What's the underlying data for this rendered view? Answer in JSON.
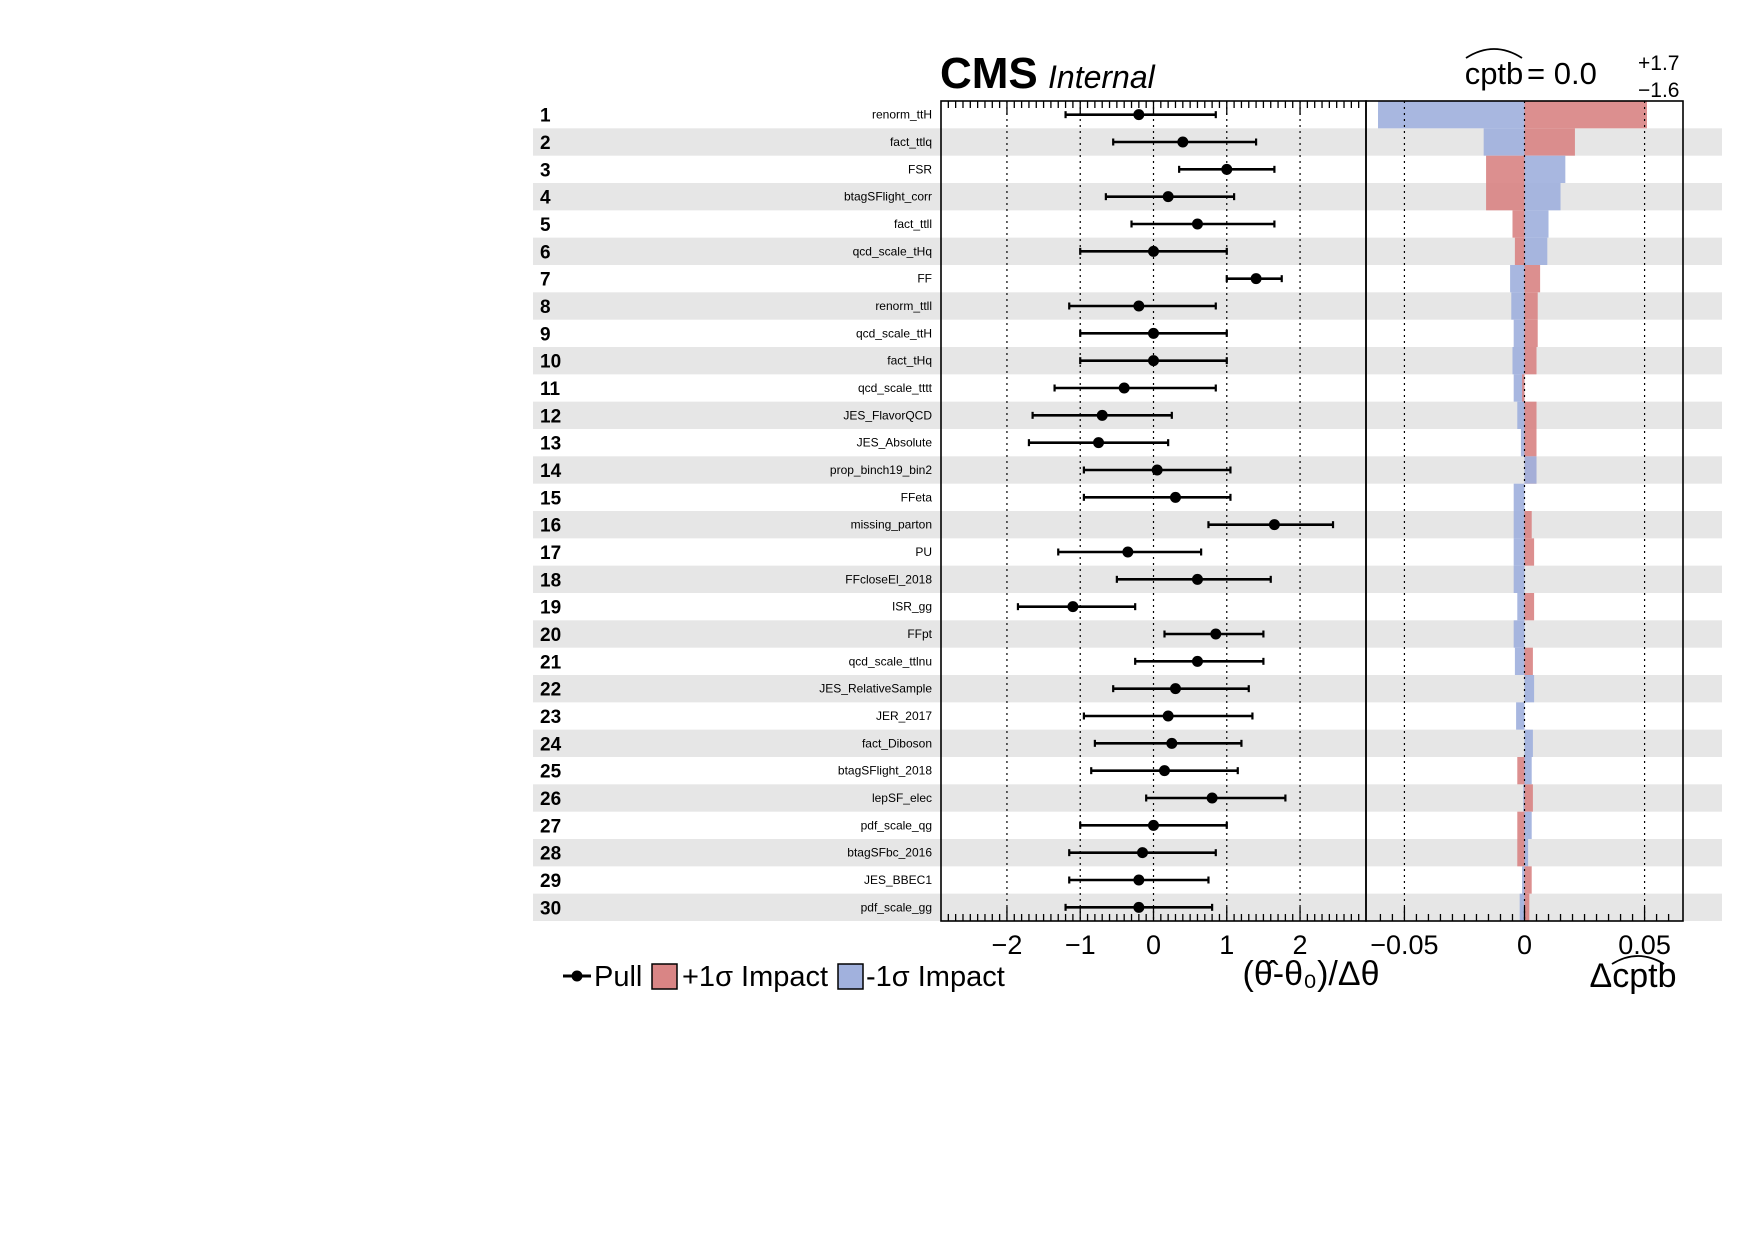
{
  "header": {
    "experiment": "CMS",
    "status": "Internal",
    "poi_name": "cptb",
    "poi_value_text": "= 0.0",
    "poi_err_up": "+1.7",
    "poi_err_down": "−1.6"
  },
  "legend": {
    "pull": "Pull",
    "impact_up": "+1σ Impact",
    "impact_down": "-1σ Impact"
  },
  "colors": {
    "impact_up": "#d98585",
    "impact_down": "#a1b1dd",
    "row_shade": "#e6e6e6",
    "axis": "#000000"
  },
  "chart_data": [
    {
      "type": "scatter",
      "name": "pulls",
      "xlabel": "(θ̂-θ₀)/Δθ",
      "xlim": [
        -2.9,
        2.9
      ],
      "xticks": [
        -2,
        -1,
        0,
        1,
        2
      ],
      "xtick_labels": [
        "−2",
        "−1",
        "0",
        "1",
        "2"
      ],
      "dotted_lines": [
        -2,
        -1,
        0,
        1,
        2
      ],
      "rows": [
        {
          "rank": "1",
          "label": "renorm_ttH",
          "pull": -0.2,
          "lo": -1.2,
          "hi": 0.85
        },
        {
          "rank": "2",
          "label": "fact_ttlq",
          "pull": 0.4,
          "lo": -0.55,
          "hi": 1.4
        },
        {
          "rank": "3",
          "label": "FSR",
          "pull": 1.0,
          "lo": 0.35,
          "hi": 1.65
        },
        {
          "rank": "4",
          "label": "btagSFlight_corr",
          "pull": 0.2,
          "lo": -0.65,
          "hi": 1.1
        },
        {
          "rank": "5",
          "label": "fact_ttll",
          "pull": 0.6,
          "lo": -0.3,
          "hi": 1.65
        },
        {
          "rank": "6",
          "label": "qcd_scale_tHq",
          "pull": 0.0,
          "lo": -1.0,
          "hi": 1.0
        },
        {
          "rank": "7",
          "label": "FF",
          "pull": 1.4,
          "lo": 1.0,
          "hi": 1.75
        },
        {
          "rank": "8",
          "label": "renorm_ttll",
          "pull": -0.2,
          "lo": -1.15,
          "hi": 0.85
        },
        {
          "rank": "9",
          "label": "qcd_scale_ttH",
          "pull": 0.0,
          "lo": -1.0,
          "hi": 1.0
        },
        {
          "rank": "10",
          "label": "fact_tHq",
          "pull": 0.0,
          "lo": -1.0,
          "hi": 1.0
        },
        {
          "rank": "11",
          "label": "qcd_scale_tttt",
          "pull": -0.4,
          "lo": -1.35,
          "hi": 0.85
        },
        {
          "rank": "12",
          "label": "JES_FlavorQCD",
          "pull": -0.7,
          "lo": -1.65,
          "hi": 0.25
        },
        {
          "rank": "13",
          "label": "JES_Absolute",
          "pull": -0.75,
          "lo": -1.7,
          "hi": 0.2
        },
        {
          "rank": "14",
          "label": "prop_binch19_bin2",
          "pull": 0.05,
          "lo": -0.95,
          "hi": 1.05
        },
        {
          "rank": "15",
          "label": "FFeta",
          "pull": 0.3,
          "lo": -0.95,
          "hi": 1.05
        },
        {
          "rank": "16",
          "label": "missing_parton",
          "pull": 1.65,
          "lo": 0.75,
          "hi": 2.45
        },
        {
          "rank": "17",
          "label": "PU",
          "pull": -0.35,
          "lo": -1.3,
          "hi": 0.65
        },
        {
          "rank": "18",
          "label": "FFcloseEl_2018",
          "pull": 0.6,
          "lo": -0.5,
          "hi": 1.6
        },
        {
          "rank": "19",
          "label": "ISR_gg",
          "pull": -1.1,
          "lo": -1.85,
          "hi": -0.25
        },
        {
          "rank": "20",
          "label": "FFpt",
          "pull": 0.85,
          "lo": 0.15,
          "hi": 1.5
        },
        {
          "rank": "21",
          "label": "qcd_scale_ttlnu",
          "pull": 0.6,
          "lo": -0.25,
          "hi": 1.5
        },
        {
          "rank": "22",
          "label": "JES_RelativeSample",
          "pull": 0.3,
          "lo": -0.55,
          "hi": 1.3
        },
        {
          "rank": "23",
          "label": "JER_2017",
          "pull": 0.2,
          "lo": -0.95,
          "hi": 1.35
        },
        {
          "rank": "24",
          "label": "fact_Diboson",
          "pull": 0.25,
          "lo": -0.8,
          "hi": 1.2
        },
        {
          "rank": "25",
          "label": "btagSFlight_2018",
          "pull": 0.15,
          "lo": -0.85,
          "hi": 1.15
        },
        {
          "rank": "26",
          "label": "lepSF_elec",
          "pull": 0.8,
          "lo": -0.1,
          "hi": 1.8
        },
        {
          "rank": "27",
          "label": "pdf_scale_qg",
          "pull": 0.0,
          "lo": -1.0,
          "hi": 1.0
        },
        {
          "rank": "28",
          "label": "btagSFbc_2016",
          "pull": -0.15,
          "lo": -1.15,
          "hi": 0.85
        },
        {
          "rank": "29",
          "label": "JES_BBEC1",
          "pull": -0.2,
          "lo": -1.15,
          "hi": 0.75
        },
        {
          "rank": "30",
          "label": "pdf_scale_gg",
          "pull": -0.2,
          "lo": -1.2,
          "hi": 0.8
        }
      ]
    },
    {
      "type": "bar",
      "name": "impacts",
      "xlabel": "Δcptb",
      "xlim": [
        -0.066,
        0.066
      ],
      "xticks": [
        -0.05,
        0,
        0.05
      ],
      "xtick_labels": [
        "−0.05",
        "0",
        "0.05"
      ],
      "dotted_lines": [
        -0.05,
        0,
        0.05
      ],
      "series": [
        {
          "name": "+1σ Impact",
          "values": [
            0.051,
            0.021,
            -0.016,
            -0.016,
            -0.005,
            -0.004,
            0.0065,
            0.0055,
            0.0055,
            0.005,
            -0.001,
            0.005,
            0.005,
            0.005,
            0.0,
            0.003,
            0.004,
            0.0,
            0.004,
            0.0,
            0.0035,
            0.0,
            0.0,
            0.0,
            -0.003,
            0.0035,
            -0.003,
            -0.003,
            0.003,
            0.002
          ]
        },
        {
          "name": "-1σ Impact",
          "values": [
            -0.061,
            -0.017,
            0.017,
            0.015,
            0.01,
            0.0095,
            -0.006,
            -0.0055,
            -0.0045,
            -0.005,
            -0.0045,
            -0.003,
            -0.0015,
            0.005,
            -0.0045,
            -0.0045,
            -0.0045,
            -0.0045,
            -0.003,
            -0.0045,
            -0.004,
            0.004,
            -0.0035,
            0.0035,
            0.003,
            -0.0005,
            0.003,
            0.0015,
            -0.001,
            -0.002
          ]
        }
      ]
    }
  ]
}
